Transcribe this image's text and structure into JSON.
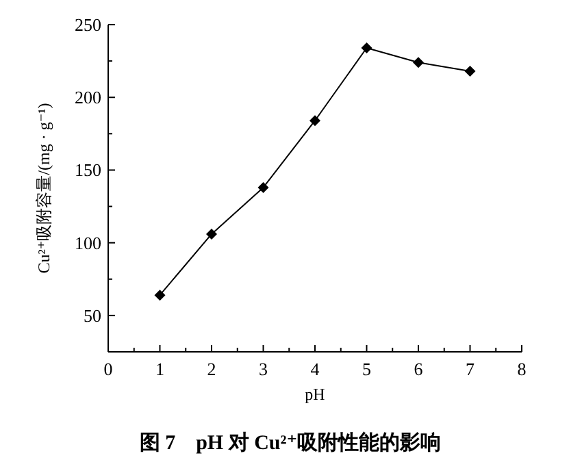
{
  "chart_data": {
    "type": "line",
    "title": "图 7　pH 对 Cu²⁺吸附性能的影响",
    "xlabel": "pH",
    "ylabel": "Cu²⁺吸附容量/(mg · g⁻¹)",
    "x": [
      1,
      2,
      3,
      4,
      5,
      6,
      7
    ],
    "series": [
      {
        "color": "#000000",
        "values": [
          64,
          106,
          138,
          184,
          234,
          224,
          218
        ]
      }
    ],
    "xlim": [
      0,
      8
    ],
    "ylim": [
      25,
      250
    ],
    "xticks": [
      0,
      {
        "value": 0.5,
        "label": null
      },
      1,
      {
        "value": 1.5,
        "label": null
      },
      2,
      {
        "value": 2.5,
        "label": null
      },
      3,
      {
        "value": 3.5,
        "label": null
      },
      4,
      {
        "value": 4.5,
        "label": null
      },
      5,
      {
        "value": 5.5,
        "label": null
      },
      6,
      {
        "value": 6.5,
        "label": null
      },
      7,
      {
        "value": 7.5,
        "label": null
      },
      8
    ],
    "yticks": [
      {
        "value": 25,
        "label": null
      },
      50,
      {
        "value": 75,
        "label": null
      },
      100,
      {
        "value": 125,
        "label": null
      },
      150,
      {
        "value": 175,
        "label": null
      },
      200,
      {
        "value": 225,
        "label": null
      },
      250
    ],
    "marker": "diamond",
    "line_style": "solid"
  }
}
